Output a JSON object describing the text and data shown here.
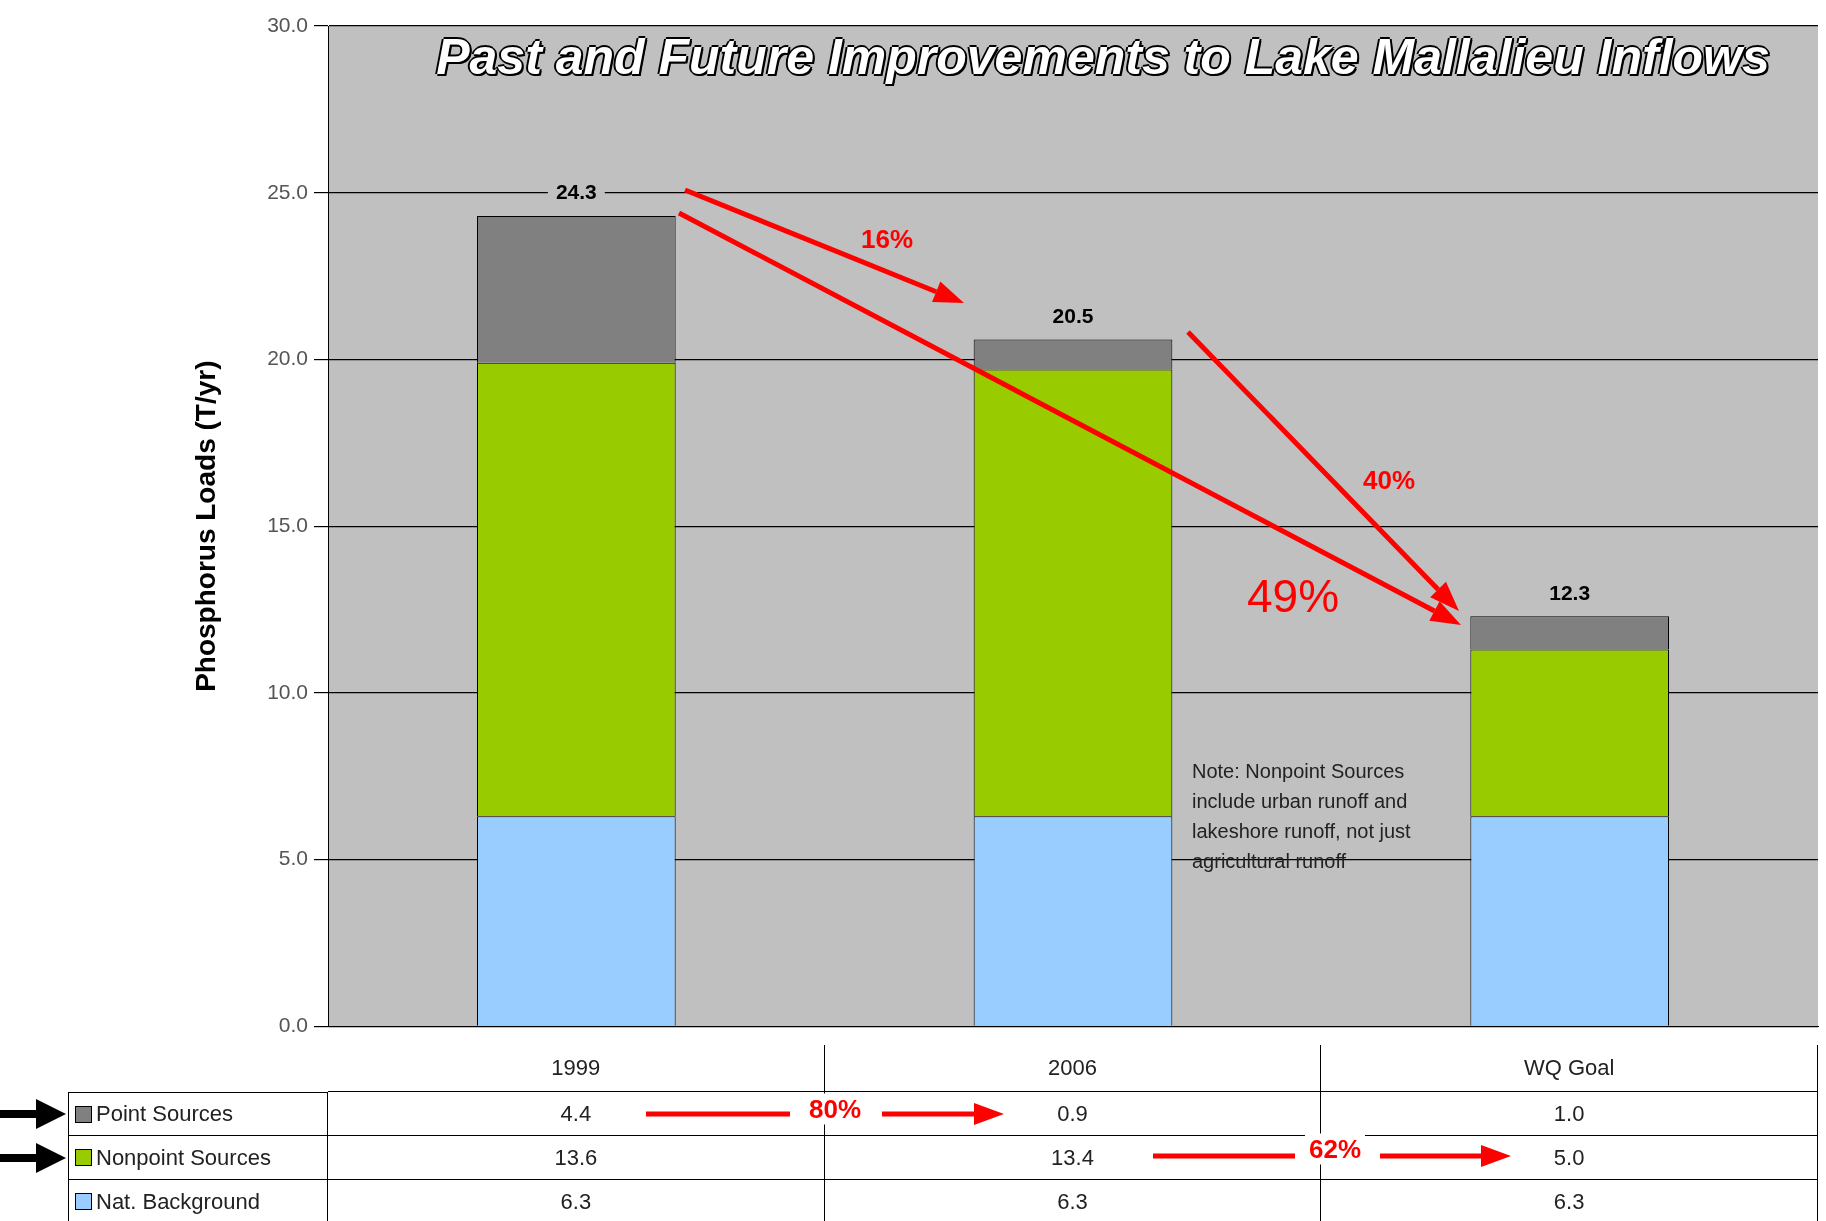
{
  "chart_data": {
    "type": "bar",
    "title": "Past and Future Improvements to Lake Mallalieu Inflows",
    "ylabel": "Phosphorus Loads (T/yr)",
    "categories": [
      "1999",
      "2006",
      "WQ Goal"
    ],
    "series": [
      {
        "name": "Nat. Background",
        "color": "#99ccff",
        "values": [
          6.3,
          6.3,
          6.3
        ],
        "value_labels": [
          "6.3",
          "6.3",
          "6.3"
        ]
      },
      {
        "name": "Nonpoint Sources",
        "color": "#99cc00",
        "values": [
          13.6,
          13.4,
          5.0
        ],
        "value_labels": [
          "13.6",
          "13.4",
          "5.0"
        ]
      },
      {
        "name": "Point Sources",
        "color": "#808080",
        "values": [
          4.4,
          0.9,
          1.0
        ],
        "value_labels": [
          "4.4",
          "0.9",
          "1.0"
        ]
      }
    ],
    "stacked": true,
    "totals": [
      "24.3",
      "20.5",
      "12.3"
    ],
    "ylim": [
      0,
      30
    ],
    "yticks": [
      {
        "value": 0,
        "label": "0.0"
      },
      {
        "value": 5,
        "label": "5.0"
      },
      {
        "value": 10,
        "label": "10.0"
      },
      {
        "value": 15,
        "label": "15.0"
      },
      {
        "value": 20,
        "label": "20.0"
      },
      {
        "value": 25,
        "label": "25.0"
      },
      {
        "value": 30,
        "label": "30.0"
      }
    ],
    "grid": "y",
    "legend": "bottom",
    "annotations": [
      "16%",
      "49%",
      "40%",
      "80%",
      "62%",
      "Note: Nonpoint Sources include urban runoff and lakeshore runoff, not just agricultural runoff"
    ]
  }
}
